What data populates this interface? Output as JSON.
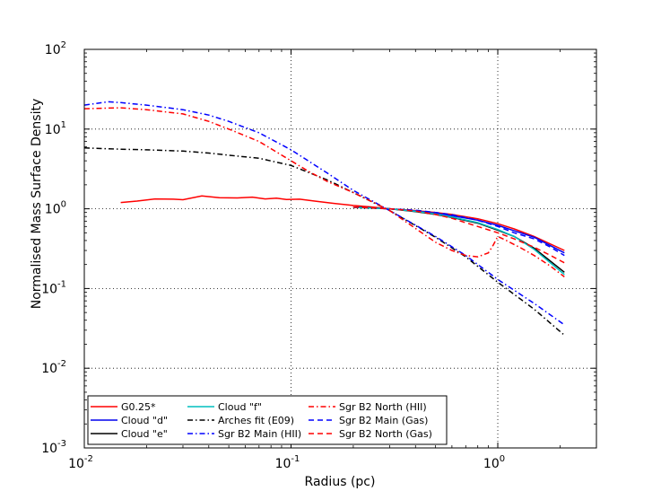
{
  "chart_data": {
    "type": "line",
    "title": "",
    "xlabel": "Radius (pc)",
    "ylabel": "Normalised Mass Surface Density",
    "xscale": "log",
    "yscale": "log",
    "xlim": [
      0.01,
      3.0
    ],
    "ylim": [
      0.001,
      100
    ],
    "grid": true,
    "legend_position": "bottom-left",
    "xticks": [
      {
        "value": 0.01,
        "base": "10",
        "exp": "-2"
      },
      {
        "value": 0.1,
        "base": "10",
        "exp": "-1"
      },
      {
        "value": 1,
        "base": "10",
        "exp": "0"
      }
    ],
    "yticks": [
      {
        "value": 0.001,
        "base": "10",
        "exp": "-3"
      },
      {
        "value": 0.01,
        "base": "10",
        "exp": "-2"
      },
      {
        "value": 0.1,
        "base": "10",
        "exp": "-1"
      },
      {
        "value": 1,
        "base": "10",
        "exp": "0"
      },
      {
        "value": 10,
        "base": "10",
        "exp": "1"
      },
      {
        "value": 100,
        "base": "10",
        "exp": "2"
      }
    ],
    "series": [
      {
        "name": "G0.25*",
        "color": "#ff0000",
        "dash": "solid",
        "x": [
          0.015,
          0.018,
          0.022,
          0.027,
          0.03,
          0.037,
          0.045,
          0.055,
          0.065,
          0.075,
          0.085,
          0.095,
          0.11,
          0.13,
          0.16,
          0.2,
          0.25,
          0.3,
          0.4,
          0.5,
          0.6,
          0.8,
          1.0,
          1.2,
          1.5,
          2.1
        ],
        "y": [
          1.2,
          1.25,
          1.33,
          1.32,
          1.3,
          1.45,
          1.38,
          1.37,
          1.4,
          1.33,
          1.36,
          1.31,
          1.32,
          1.25,
          1.17,
          1.1,
          1.05,
          1.0,
          0.95,
          0.9,
          0.85,
          0.75,
          0.65,
          0.56,
          0.45,
          0.3
        ]
      },
      {
        "name": "Cloud \"d\"",
        "color": "#0000ee",
        "dash": "solid",
        "x": [
          0.2,
          0.3,
          0.4,
          0.5,
          0.6,
          0.8,
          1.0,
          1.2,
          1.5,
          2.1
        ],
        "y": [
          1.05,
          1.0,
          0.94,
          0.88,
          0.82,
          0.72,
          0.62,
          0.53,
          0.44,
          0.28
        ]
      },
      {
        "name": "Cloud \"e\"",
        "color": "#000000",
        "dash": "solid",
        "x": [
          0.2,
          0.3,
          0.4,
          0.5,
          0.6,
          0.8,
          1.0,
          1.2,
          1.5,
          2.1
        ],
        "y": [
          1.05,
          1.0,
          0.92,
          0.85,
          0.78,
          0.66,
          0.54,
          0.45,
          0.32,
          0.16
        ]
      },
      {
        "name": "Cloud \"f\"",
        "color": "#00bfbf",
        "dash": "solid",
        "x": [
          0.2,
          0.3,
          0.4,
          0.5,
          0.6,
          0.8,
          1.0,
          1.2,
          1.5,
          2.1
        ],
        "y": [
          1.04,
          1.0,
          0.93,
          0.86,
          0.79,
          0.67,
          0.55,
          0.45,
          0.31,
          0.15
        ]
      },
      {
        "name": "Arches fit (E09)",
        "color": "#000000",
        "dash": "dashdot",
        "x": [
          0.01,
          0.015,
          0.02,
          0.03,
          0.04,
          0.05,
          0.07,
          0.1,
          0.15,
          0.2,
          0.3,
          0.5,
          0.7,
          1.0,
          1.5,
          2.1
        ],
        "y": [
          5.8,
          5.6,
          5.5,
          5.3,
          5.0,
          4.7,
          4.3,
          3.5,
          2.3,
          1.6,
          0.95,
          0.44,
          0.25,
          0.12,
          0.055,
          0.026
        ]
      },
      {
        "name": "Sgr B2 Main (HII)",
        "color": "#0000ff",
        "dash": "dashdot",
        "x": [
          0.01,
          0.013,
          0.015,
          0.02,
          0.03,
          0.04,
          0.05,
          0.07,
          0.1,
          0.15,
          0.2,
          0.3,
          0.5,
          0.7,
          1.0,
          1.5,
          2.1
        ],
        "y": [
          20.0,
          22.0,
          21.5,
          20.0,
          17.5,
          15.0,
          12.5,
          9.0,
          5.5,
          2.8,
          1.7,
          0.95,
          0.45,
          0.26,
          0.13,
          0.065,
          0.035
        ]
      },
      {
        "name": "Sgr B2 North (HII)",
        "color": "#ff0000",
        "dash": "dashdot",
        "x": [
          0.01,
          0.015,
          0.02,
          0.03,
          0.04,
          0.05,
          0.07,
          0.1,
          0.12,
          0.15,
          0.2,
          0.3,
          0.5,
          0.6,
          0.7,
          0.8,
          0.9,
          0.95,
          1.0,
          1.1,
          1.3,
          1.5,
          1.8,
          2.1
        ],
        "y": [
          18.0,
          18.5,
          17.5,
          15.5,
          12.5,
          10.0,
          7.0,
          4.0,
          3.0,
          2.2,
          1.6,
          0.95,
          0.38,
          0.3,
          0.26,
          0.25,
          0.28,
          0.35,
          0.45,
          0.4,
          0.32,
          0.26,
          0.19,
          0.14
        ]
      },
      {
        "name": "Sgr B2 Main (Gas)",
        "color": "#0000ff",
        "dash": "dashed",
        "x": [
          0.2,
          0.3,
          0.4,
          0.5,
          0.6,
          0.8,
          1.0,
          1.2,
          1.5,
          1.8,
          2.1
        ],
        "y": [
          1.05,
          1.0,
          0.96,
          0.9,
          0.84,
          0.72,
          0.6,
          0.5,
          0.42,
          0.33,
          0.26
        ]
      },
      {
        "name": "Sgr B2 North (Gas)",
        "color": "#ff0000",
        "dash": "dashed",
        "x": [
          0.2,
          0.3,
          0.4,
          0.5,
          0.6,
          0.8,
          1.0,
          1.2,
          1.5,
          1.8,
          2.1
        ],
        "y": [
          1.05,
          1.0,
          0.94,
          0.85,
          0.76,
          0.6,
          0.5,
          0.42,
          0.33,
          0.26,
          0.21
        ]
      }
    ]
  }
}
